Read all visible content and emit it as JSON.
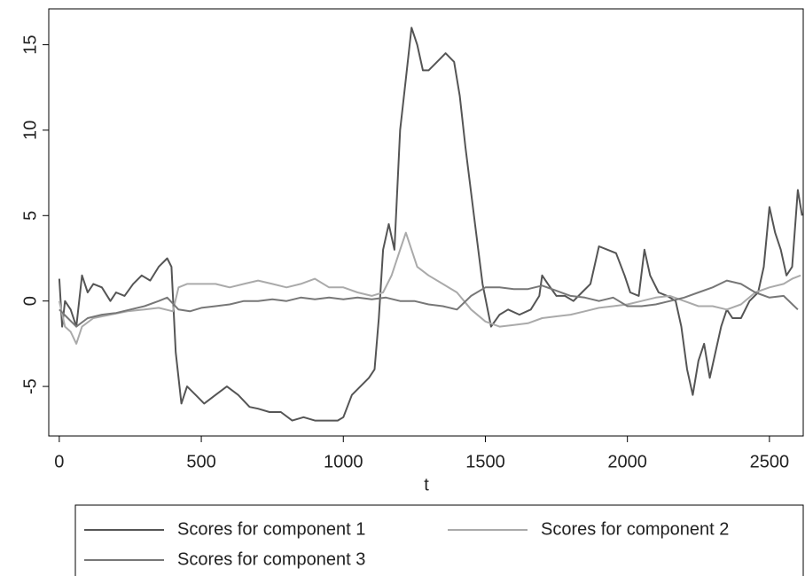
{
  "chart_data": {
    "type": "line",
    "x_label": "t",
    "xlim": [
      -37,
      2619
    ],
    "xticks": [
      0,
      500,
      1000,
      1500,
      2000,
      2500
    ],
    "ylim": [
      -7.9,
      17.1
    ],
    "yticks": [
      -5,
      0,
      5,
      10,
      15
    ],
    "series": [
      {
        "name": "Scores for component 1",
        "color": "#555555",
        "x": [
          0,
          10,
          20,
          40,
          60,
          80,
          100,
          120,
          150,
          180,
          200,
          230,
          260,
          290,
          320,
          350,
          380,
          395,
          410,
          430,
          450,
          480,
          510,
          550,
          590,
          630,
          670,
          700,
          740,
          780,
          820,
          860,
          900,
          940,
          980,
          1000,
          1030,
          1060,
          1090,
          1110,
          1125,
          1140,
          1160,
          1180,
          1200,
          1220,
          1240,
          1260,
          1280,
          1300,
          1330,
          1360,
          1390,
          1410,
          1430,
          1460,
          1490,
          1520,
          1550,
          1580,
          1620,
          1660,
          1690,
          1700,
          1720,
          1750,
          1780,
          1810,
          1840,
          1870,
          1900,
          1930,
          1960,
          1990,
          2010,
          2040,
          2060,
          2080,
          2110,
          2140,
          2170,
          2190,
          2210,
          2230,
          2250,
          2270,
          2290,
          2310,
          2330,
          2350,
          2370,
          2400,
          2430,
          2460,
          2480,
          2500,
          2520,
          2540,
          2560,
          2580,
          2600,
          2615
        ],
        "values": [
          1.3,
          -1.5,
          0,
          -0.5,
          -1.5,
          1.5,
          0.5,
          1,
          0.8,
          0,
          0.5,
          0.3,
          1,
          1.5,
          1.2,
          2,
          2.5,
          2,
          -3,
          -6,
          -5,
          -5.5,
          -6,
          -5.5,
          -5,
          -5.5,
          -6.2,
          -6.3,
          -6.5,
          -6.5,
          -7,
          -6.8,
          -7,
          -7,
          -7,
          -6.8,
          -5.5,
          -5,
          -4.5,
          -4,
          -1,
          3,
          4.5,
          3,
          10,
          13,
          16,
          15,
          13.5,
          13.5,
          14,
          14.5,
          14,
          12,
          9,
          5,
          1,
          -1.5,
          -0.8,
          -0.5,
          -0.8,
          -0.5,
          0.3,
          1.5,
          1,
          0.3,
          0.3,
          0,
          0.5,
          1,
          3.2,
          3,
          2.8,
          1.5,
          0.5,
          0.3,
          3,
          1.5,
          0.5,
          0.3,
          0,
          -1.5,
          -4,
          -5.5,
          -3.5,
          -2.5,
          -4.5,
          -3,
          -1.5,
          -0.5,
          -1,
          -1,
          0,
          0.5,
          2,
          5.5,
          4,
          3,
          1.5,
          2,
          6.5,
          5
        ]
      },
      {
        "name": "Scores for component 2",
        "color": "#aaaaaa",
        "x": [
          0,
          20,
          40,
          60,
          80,
          120,
          180,
          240,
          300,
          350,
          400,
          420,
          450,
          500,
          550,
          600,
          650,
          700,
          750,
          800,
          850,
          900,
          950,
          1000,
          1050,
          1100,
          1140,
          1170,
          1200,
          1220,
          1240,
          1260,
          1300,
          1350,
          1400,
          1450,
          1500,
          1550,
          1600,
          1650,
          1700,
          1750,
          1800,
          1850,
          1900,
          1950,
          2000,
          2050,
          2100,
          2150,
          2200,
          2250,
          2300,
          2350,
          2400,
          2450,
          2500,
          2550,
          2580,
          2610
        ],
        "values": [
          0,
          -1.5,
          -1.8,
          -2.5,
          -1.5,
          -1,
          -0.8,
          -0.6,
          -0.5,
          -0.4,
          -0.6,
          0.8,
          1,
          1,
          1,
          0.8,
          1,
          1.2,
          1,
          0.8,
          1,
          1.3,
          0.8,
          0.8,
          0.5,
          0.3,
          0.5,
          1.5,
          3,
          4,
          3,
          2,
          1.5,
          1,
          0.5,
          -0.5,
          -1.2,
          -1.5,
          -1.4,
          -1.3,
          -1,
          -0.9,
          -0.8,
          -0.6,
          -0.4,
          -0.3,
          -0.2,
          0,
          0.2,
          0.3,
          0,
          -0.3,
          -0.3,
          -0.5,
          -0.2,
          0.5,
          0.8,
          1,
          1.3,
          1.5
        ]
      },
      {
        "name": "Scores for component 3",
        "color": "#777777",
        "x": [
          0,
          30,
          60,
          100,
          150,
          200,
          250,
          300,
          350,
          380,
          420,
          460,
          500,
          550,
          600,
          650,
          700,
          750,
          800,
          850,
          900,
          950,
          1000,
          1050,
          1100,
          1150,
          1200,
          1250,
          1300,
          1350,
          1400,
          1450,
          1500,
          1550,
          1600,
          1650,
          1700,
          1750,
          1800,
          1850,
          1900,
          1950,
          2000,
          2050,
          2100,
          2150,
          2200,
          2250,
          2300,
          2350,
          2400,
          2450,
          2500,
          2550,
          2600
        ],
        "values": [
          -0.5,
          -1,
          -1.5,
          -1,
          -0.8,
          -0.7,
          -0.5,
          -0.3,
          0,
          0.2,
          -0.5,
          -0.6,
          -0.4,
          -0.3,
          -0.2,
          0,
          0,
          0.1,
          0,
          0.2,
          0.1,
          0.2,
          0.1,
          0.2,
          0.1,
          0.2,
          0,
          0,
          -0.2,
          -0.3,
          -0.5,
          0.3,
          0.8,
          0.8,
          0.7,
          0.7,
          0.9,
          0.6,
          0.3,
          0.2,
          0,
          0.2,
          -0.3,
          -0.3,
          -0.2,
          0,
          0.2,
          0.5,
          0.8,
          1.2,
          1,
          0.5,
          0.2,
          0.3,
          -0.5
        ]
      }
    ]
  }
}
